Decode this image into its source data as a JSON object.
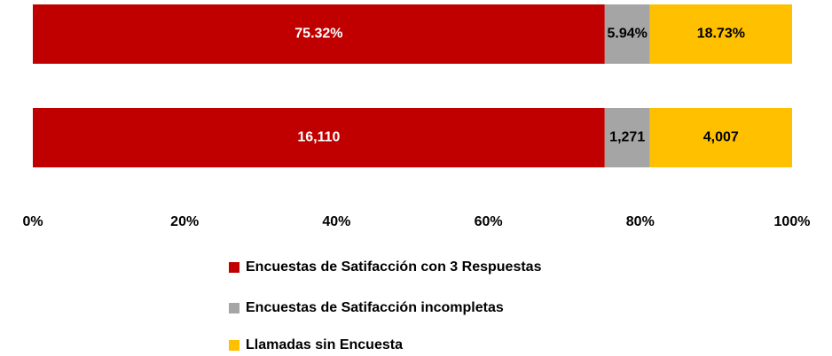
{
  "chart_data": {
    "type": "bar",
    "orientation": "horizontal",
    "stacked": "percent",
    "categories": [
      null,
      null
    ],
    "series": [
      {
        "name": "Encuestas de Satifacción con 3 Respuestas",
        "color": "#c00000",
        "label_color": "#ffffff",
        "values": [
          75.32,
          16110
        ],
        "value_labels": [
          "75.32%",
          "16,110"
        ]
      },
      {
        "name": "Encuestas de Satifacción incompletas",
        "color": "#a5a5a5",
        "label_color": "#000000",
        "values": [
          5.94,
          1271
        ],
        "value_labels": [
          "5.94%",
          "1,271"
        ]
      },
      {
        "name": "Llamadas sin Encuesta",
        "color": "#ffc000",
        "label_color": "#000000",
        "values": [
          18.73,
          4007
        ],
        "value_labels": [
          "18.73%",
          "4,007"
        ]
      }
    ],
    "xlim": [
      0,
      100
    ],
    "xticks": [
      {
        "value": 0,
        "label": "0%"
      },
      {
        "value": 20,
        "label": "20%"
      },
      {
        "value": 40,
        "label": "40%"
      },
      {
        "value": 60,
        "label": "60%"
      },
      {
        "value": 80,
        "label": "80%"
      },
      {
        "value": 100,
        "label": "100%"
      }
    ],
    "grid": false,
    "legend": "bottom"
  }
}
